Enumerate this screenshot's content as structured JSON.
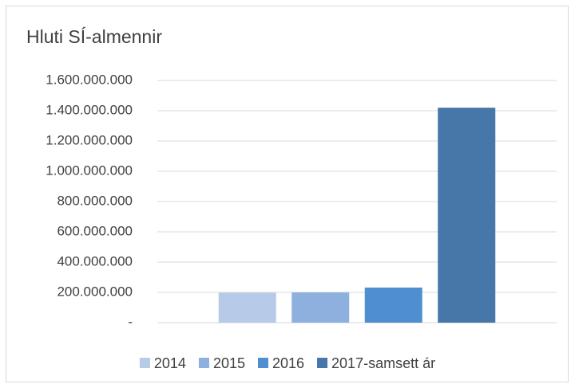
{
  "chart_data": {
    "type": "bar",
    "title": "Hluti SÍ-almennir",
    "categories": [
      null
    ],
    "series": [
      {
        "name": "2014",
        "color": "#b7cbe8",
        "values": [
          198000000
        ]
      },
      {
        "name": "2015",
        "color": "#8eb0de",
        "values": [
          200000000
        ]
      },
      {
        "name": "2016",
        "color": "#4f8fd1",
        "values": [
          232000000
        ]
      },
      {
        "name": "2017-samsett ár",
        "color": "#4677a8",
        "values": [
          1420000000
        ]
      }
    ],
    "ylim": [
      0,
      1600000000
    ],
    "yticks": [
      {
        "value": 0,
        "label": "-"
      },
      {
        "value": 200000000,
        "label": "200.000.000"
      },
      {
        "value": 400000000,
        "label": "400.000.000"
      },
      {
        "value": 600000000,
        "label": "600.000.000"
      },
      {
        "value": 800000000,
        "label": "800.000.000"
      },
      {
        "value": 1000000000,
        "label": "1.000.000.000"
      },
      {
        "value": 1200000000,
        "label": "1.200.000.000"
      },
      {
        "value": 1400000000,
        "label": "1.400.000.000"
      },
      {
        "value": 1600000000,
        "label": "1.600.000.000"
      }
    ],
    "grid": true,
    "legend": "bottom"
  }
}
